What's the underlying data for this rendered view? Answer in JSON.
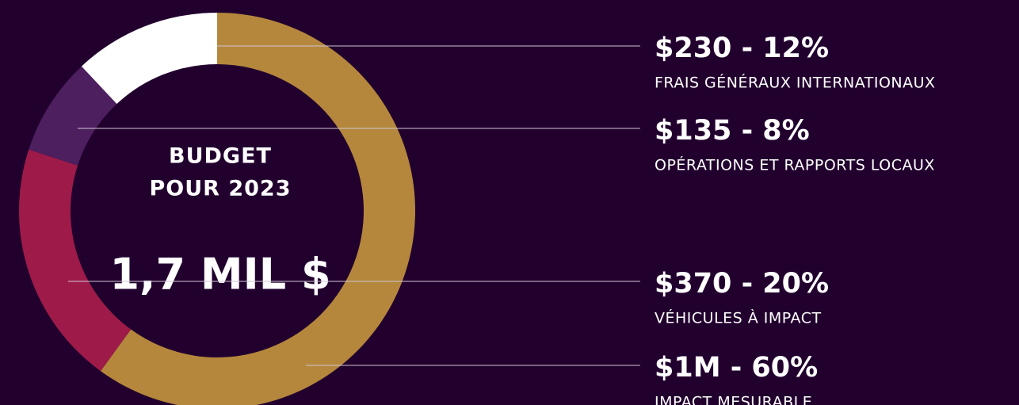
{
  "chart_data": {
    "type": "donut",
    "center_label": [
      "BUDGET",
      "POUR 2023"
    ],
    "total_label": "1,7 MIL $",
    "categories": [
      "FRAIS GÉNÉRAUX INTERNATIONAUX",
      "OPÉRATIONS ET RAPPORTS LOCAUX",
      "VÉHICULES À IMPACT",
      "IMPACT MESURABLE"
    ],
    "values": [
      12,
      8,
      20,
      60
    ],
    "value_labels": [
      "$230 - 12%",
      "$135 - 8%",
      "$370 - 20%",
      "$1M - 60%"
    ],
    "colors": [
      "#ffffff",
      "#4d1f5f",
      "#9e1b49",
      "#b5873c"
    ]
  }
}
